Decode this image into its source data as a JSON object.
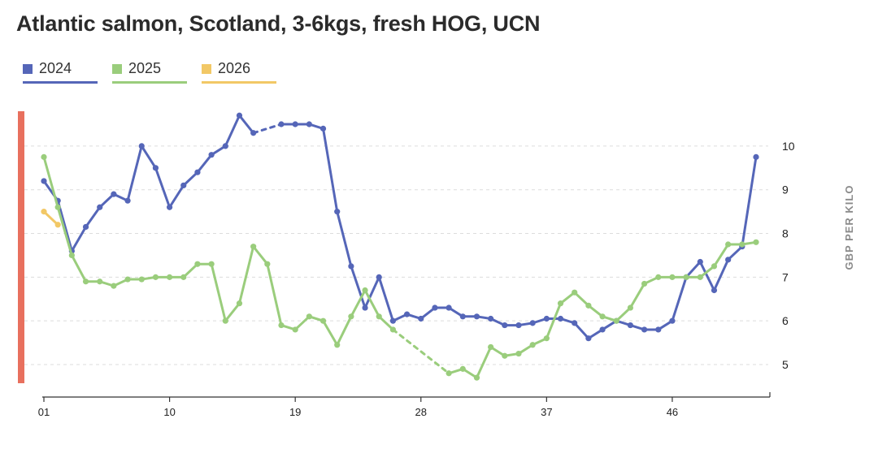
{
  "chart_data": {
    "type": "line",
    "title": "Atlantic salmon, Scotland, 3-6kgs, fresh HOG, UCN",
    "ylabel": "GBP PER KILO",
    "xlabel": "",
    "x_ticks": [
      "01",
      "10",
      "19",
      "28",
      "37",
      "46"
    ],
    "x_tick_weeks": [
      1,
      10,
      19,
      28,
      37,
      46
    ],
    "xlim": [
      1,
      53
    ],
    "y_ticks": [
      5,
      6,
      7,
      8,
      9,
      10
    ],
    "ylim": [
      4.5,
      10.9
    ],
    "grid": "horizontal dashed",
    "legend_position": "top-left",
    "series": [
      {
        "name": "2024",
        "color": "#5566b8",
        "points": [
          [
            1,
            9.2
          ],
          [
            2,
            8.75
          ],
          [
            3,
            7.6
          ],
          [
            4,
            8.15
          ],
          [
            5,
            8.6
          ],
          [
            6,
            8.9
          ],
          [
            7,
            8.75
          ],
          [
            8,
            10.0
          ],
          [
            9,
            9.5
          ],
          [
            10,
            8.6
          ],
          [
            11,
            9.1
          ],
          [
            12,
            9.4
          ],
          [
            13,
            9.8
          ],
          [
            14,
            10.0
          ],
          [
            15,
            10.7
          ],
          [
            16,
            10.3
          ],
          [
            18,
            10.5
          ],
          [
            19,
            10.5
          ],
          [
            20,
            10.5
          ],
          [
            21,
            10.4
          ],
          [
            22,
            8.5
          ],
          [
            23,
            7.25
          ],
          [
            24,
            6.3
          ],
          [
            25,
            7.0
          ],
          [
            26,
            6.0
          ],
          [
            27,
            6.15
          ],
          [
            28,
            6.05
          ],
          [
            29,
            6.3
          ],
          [
            30,
            6.3
          ],
          [
            31,
            6.1
          ],
          [
            32,
            6.1
          ],
          [
            33,
            6.05
          ],
          [
            34,
            5.9
          ],
          [
            35,
            5.9
          ],
          [
            36,
            5.95
          ],
          [
            37,
            6.05
          ],
          [
            38,
            6.05
          ],
          [
            39,
            5.95
          ],
          [
            40,
            5.6
          ],
          [
            41,
            5.8
          ],
          [
            42,
            6.0
          ],
          [
            43,
            5.9
          ],
          [
            44,
            5.8
          ],
          [
            45,
            5.8
          ],
          [
            46,
            6.0
          ],
          [
            47,
            7.0
          ],
          [
            48,
            7.35
          ],
          [
            49,
            6.7
          ],
          [
            50,
            7.4
          ],
          [
            51,
            7.7
          ],
          [
            52,
            9.75
          ]
        ],
        "dashed_gaps": [
          [
            16,
            18
          ]
        ]
      },
      {
        "name": "2025",
        "color": "#9acd7c",
        "points": [
          [
            1,
            9.75
          ],
          [
            2,
            8.6
          ],
          [
            3,
            7.5
          ],
          [
            4,
            6.9
          ],
          [
            5,
            6.9
          ],
          [
            6,
            6.8
          ],
          [
            7,
            6.95
          ],
          [
            8,
            6.95
          ],
          [
            9,
            7.0
          ],
          [
            10,
            7.0
          ],
          [
            11,
            7.0
          ],
          [
            12,
            7.3
          ],
          [
            13,
            7.3
          ],
          [
            14,
            6.0
          ],
          [
            15,
            6.4
          ],
          [
            16,
            7.7
          ],
          [
            17,
            7.3
          ],
          [
            18,
            5.9
          ],
          [
            19,
            5.8
          ],
          [
            20,
            6.1
          ],
          [
            21,
            6.0
          ],
          [
            22,
            5.45
          ],
          [
            23,
            6.1
          ],
          [
            24,
            6.7
          ],
          [
            25,
            6.1
          ],
          [
            26,
            5.8
          ],
          [
            30,
            4.8
          ],
          [
            31,
            4.9
          ],
          [
            32,
            4.7
          ],
          [
            33,
            5.4
          ],
          [
            34,
            5.2
          ],
          [
            35,
            5.25
          ],
          [
            36,
            5.45
          ],
          [
            37,
            5.6
          ],
          [
            38,
            6.4
          ],
          [
            39,
            6.65
          ],
          [
            40,
            6.35
          ],
          [
            41,
            6.1
          ],
          [
            42,
            6.0
          ],
          [
            43,
            6.3
          ],
          [
            44,
            6.85
          ],
          [
            45,
            7.0
          ],
          [
            46,
            7.0
          ],
          [
            47,
            7.0
          ],
          [
            48,
            7.0
          ],
          [
            49,
            7.25
          ],
          [
            50,
            7.75
          ],
          [
            51,
            7.75
          ],
          [
            52,
            7.8
          ]
        ],
        "dashed_gaps": [
          [
            26,
            30
          ]
        ]
      },
      {
        "name": "2026",
        "color": "#f2c866",
        "points": [
          [
            1,
            8.5
          ],
          [
            2,
            8.2
          ]
        ],
        "dashed_gaps": []
      }
    ]
  }
}
